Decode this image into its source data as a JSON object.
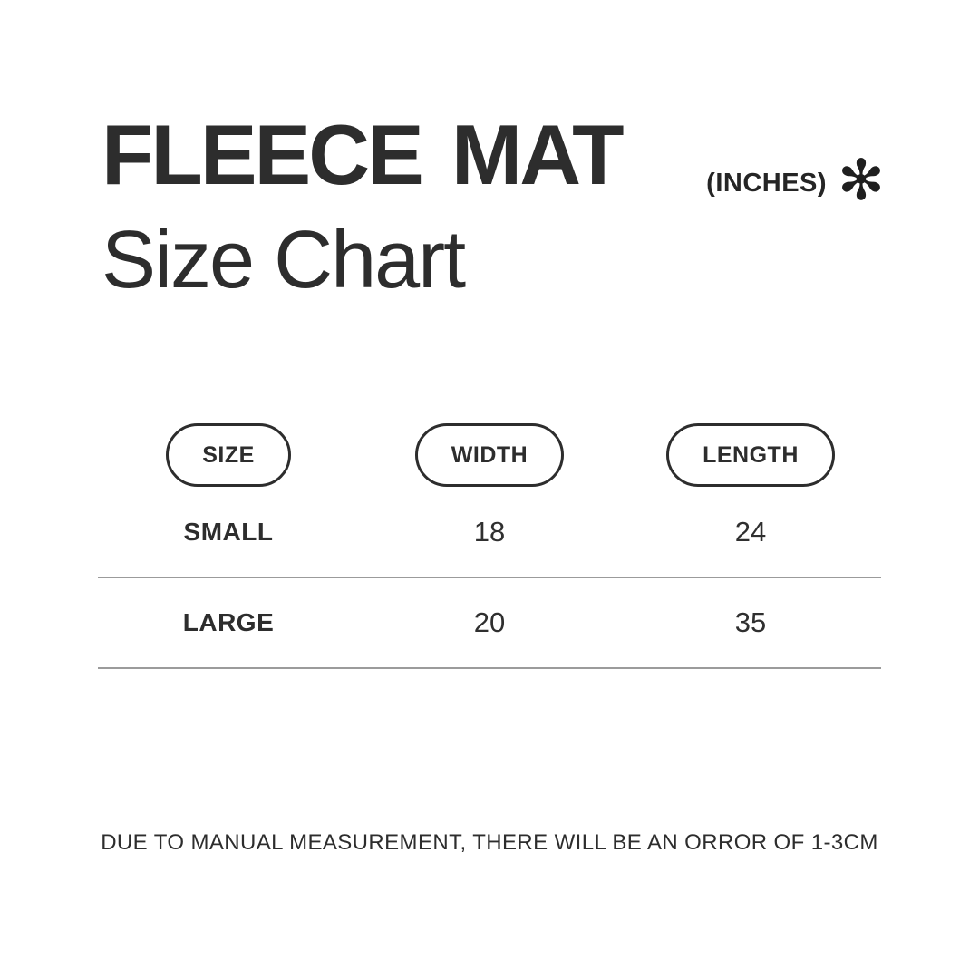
{
  "page": {
    "background_color": "#ffffff",
    "text_color": "#2d2d2d",
    "divider_color": "#9b9b9b"
  },
  "header": {
    "title": "FLEECE MAT",
    "subtitle": "Size Chart",
    "units_label": "(INCHES)",
    "units_icon_glyph": "✻"
  },
  "table": {
    "columns": [
      "SIZE",
      "WIDTH",
      "LENGTH"
    ],
    "rows": [
      {
        "size": "SMALL",
        "width": "18",
        "length": "24"
      },
      {
        "size": "LARGE",
        "width": "20",
        "length": "35"
      }
    ]
  },
  "footer": {
    "note": "DUE TO MANUAL MEASUREMENT, THERE WILL BE AN ORROR OF 1-3CM"
  },
  "chart_data": {
    "type": "table",
    "title": "FLEECE MAT Size Chart",
    "units": "INCHES",
    "columns": [
      "SIZE",
      "WIDTH",
      "LENGTH"
    ],
    "rows": [
      [
        "SMALL",
        18,
        24
      ],
      [
        "LARGE",
        20,
        35
      ]
    ],
    "note": "DUE TO MANUAL MEASUREMENT, THERE WILL BE AN ORROR OF 1-3CM"
  }
}
